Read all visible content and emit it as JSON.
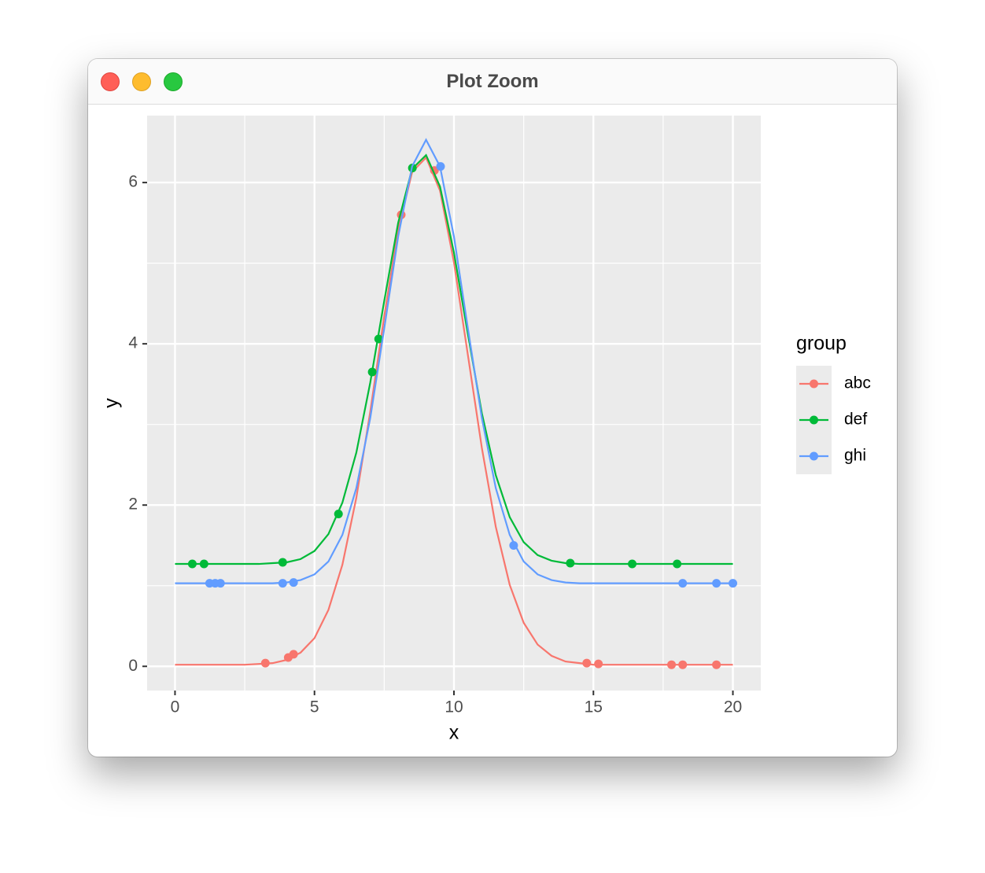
{
  "window": {
    "title": "Plot Zoom"
  },
  "chart_data": {
    "type": "line",
    "x_label": "x",
    "y_label": "y",
    "legend_title": "group",
    "legend": "right",
    "grid": true,
    "xlim": [
      -1,
      21
    ],
    "ylim": [
      -0.3,
      6.83
    ],
    "xticks": [
      0,
      5,
      10,
      15,
      20
    ],
    "yticks": [
      0,
      2,
      4,
      6
    ],
    "xminor": [
      2.5,
      7.5,
      12.5,
      17.5
    ],
    "yminor": [
      1,
      3,
      5
    ],
    "x": [
      0,
      0.5,
      1,
      1.5,
      2,
      2.5,
      3,
      3.5,
      4,
      4.5,
      5,
      5.5,
      6,
      6.5,
      7,
      7.5,
      8,
      8.5,
      9,
      9.5,
      10,
      10.5,
      11,
      11.5,
      12,
      12.5,
      13,
      13.5,
      14,
      14.5,
      15,
      15.5,
      16,
      16.5,
      17,
      17.5,
      18,
      18.5,
      19,
      19.5,
      20
    ],
    "series": [
      {
        "name": "abc",
        "color": "#F8766D",
        "values": [
          0.02,
          0.02,
          0.02,
          0.02,
          0.02,
          0.02,
          0.03,
          0.04,
          0.08,
          0.17,
          0.35,
          0.7,
          1.26,
          2.09,
          3.16,
          4.34,
          5.41,
          6.13,
          6.31,
          5.9,
          5.01,
          3.86,
          2.71,
          1.73,
          1.01,
          0.54,
          0.27,
          0.13,
          0.06,
          0.04,
          0.02,
          0.02,
          0.02,
          0.02,
          0.02,
          0.02,
          0.02,
          0.02,
          0.02,
          0.02,
          0.02
        ],
        "points_x": [
          3.24,
          4.06,
          4.25,
          8.11,
          9.3,
          14.76,
          15.18,
          17.8,
          18.2,
          19.41
        ],
        "points_y": [
          0.04,
          0.11,
          0.15,
          5.6,
          6.15,
          0.04,
          0.03,
          0.02,
          0.02,
          0.02
        ]
      },
      {
        "name": "def",
        "color": "#00BA38",
        "values": [
          1.27,
          1.27,
          1.27,
          1.27,
          1.27,
          1.27,
          1.27,
          1.28,
          1.29,
          1.33,
          1.43,
          1.64,
          2.03,
          2.65,
          3.52,
          4.53,
          5.5,
          6.17,
          6.34,
          5.95,
          5.13,
          4.12,
          3.14,
          2.37,
          1.85,
          1.54,
          1.38,
          1.31,
          1.28,
          1.27,
          1.27,
          1.27,
          1.27,
          1.27,
          1.27,
          1.27,
          1.27,
          1.27,
          1.27,
          1.27,
          1.27
        ],
        "points_x": [
          0.62,
          1.04,
          3.86,
          5.86,
          7.07,
          7.3,
          8.51,
          14.17,
          16.39,
          18.0
        ],
        "points_y": [
          1.27,
          1.27,
          1.29,
          1.89,
          3.65,
          4.06,
          6.18,
          1.28,
          1.27,
          1.27
        ]
      },
      {
        "name": "ghi",
        "color": "#619CFF",
        "values": [
          1.03,
          1.03,
          1.03,
          1.03,
          1.03,
          1.03,
          1.03,
          1.03,
          1.04,
          1.07,
          1.14,
          1.3,
          1.63,
          2.21,
          3.08,
          4.19,
          5.33,
          6.2,
          6.53,
          6.2,
          5.33,
          4.19,
          3.08,
          2.21,
          1.63,
          1.3,
          1.14,
          1.07,
          1.04,
          1.03,
          1.03,
          1.03,
          1.03,
          1.03,
          1.03,
          1.03,
          1.03,
          1.03,
          1.03,
          1.03,
          1.03
        ],
        "points_x": [
          1.24,
          1.44,
          1.63,
          3.86,
          4.25,
          9.52,
          12.14,
          18.2,
          19.41,
          20.0
        ],
        "points_y": [
          1.03,
          1.03,
          1.03,
          1.03,
          1.04,
          6.2,
          1.5,
          1.03,
          1.03,
          1.03
        ]
      }
    ]
  }
}
